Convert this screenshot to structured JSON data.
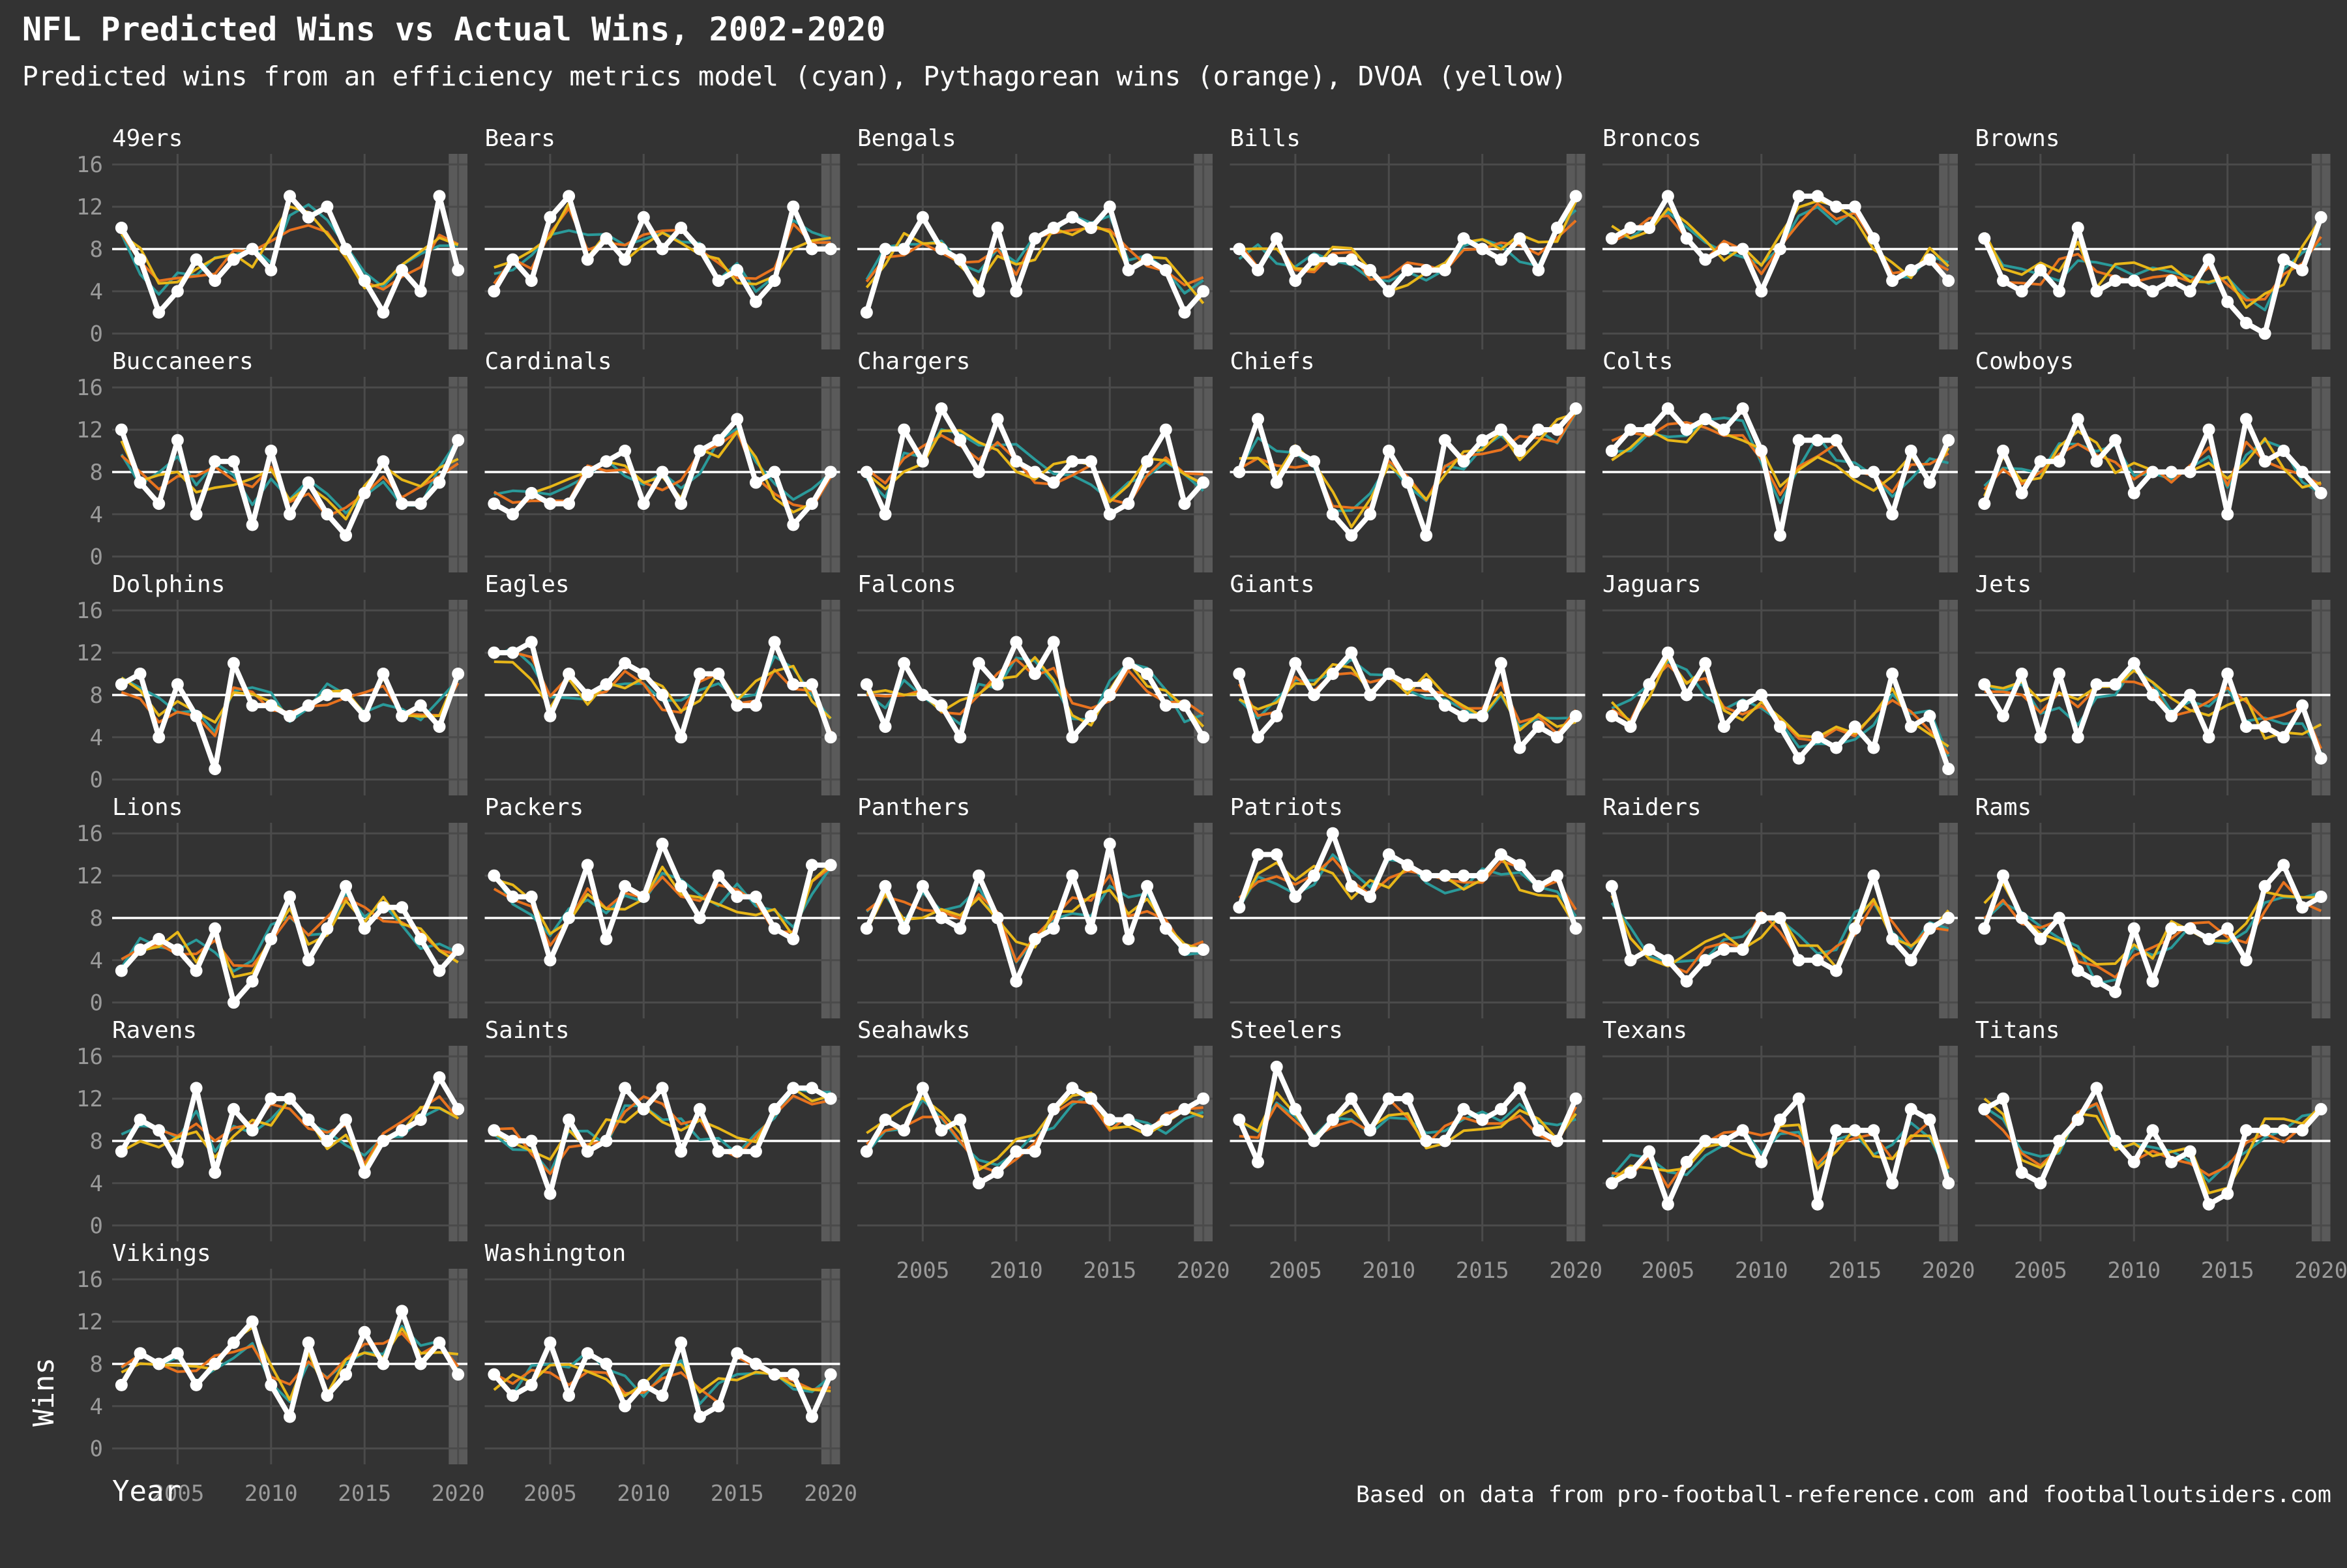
{
  "title": "NFL Predicted Wins vs Actual Wins, 2002-2020",
  "subtitle": "Predicted wins from an efficiency metrics model (cyan), Pythagorean wins (orange), DVOA (yellow)",
  "caption": "Based on data from pro-football-reference.com and footballoutsiders.com",
  "xlabel": "Year",
  "ylabel": "Wins",
  "chart_data": {
    "type": "line",
    "facet_grid": "small multiples, 6 columns, 6 rows",
    "x": [
      2002,
      2003,
      2004,
      2005,
      2006,
      2007,
      2008,
      2009,
      2010,
      2011,
      2012,
      2013,
      2014,
      2015,
      2016,
      2017,
      2018,
      2019,
      2020
    ],
    "x_ticks": [
      2005,
      2010,
      2015,
      2020
    ],
    "y_ticks": [
      0,
      4,
      8,
      12,
      16
    ],
    "ylim": [
      -1.5,
      17
    ],
    "reference_line": 8,
    "highlight_year": 2020,
    "colors": {
      "actual": "#ffffff",
      "efficiency": "#2a9a9a",
      "pythagorean": "#e8731f",
      "dvoa": "#e8b719",
      "reference": "#ffffff",
      "grid": "#4b4b4b",
      "highlight": "#5a5a5a"
    },
    "series_order": [
      "efficiency",
      "pythagorean",
      "dvoa",
      "actual"
    ],
    "teams": [
      {
        "name": "49ers",
        "actual": [
          10,
          7,
          2,
          4,
          7,
          5,
          7,
          8,
          6,
          13,
          11,
          12,
          8,
          5,
          2,
          6,
          4,
          13,
          6
        ]
      },
      {
        "name": "Bears",
        "actual": [
          4,
          7,
          5,
          11,
          13,
          7,
          9,
          7,
          11,
          8,
          10,
          8,
          5,
          6,
          3,
          5,
          12,
          8,
          8
        ]
      },
      {
        "name": "Bengals",
        "actual": [
          2,
          8,
          8,
          11,
          8,
          7,
          4,
          10,
          4,
          9,
          10,
          11,
          10,
          12,
          6,
          7,
          6,
          2,
          4
        ]
      },
      {
        "name": "Bills",
        "actual": [
          8,
          6,
          9,
          5,
          7,
          7,
          7,
          6,
          4,
          6,
          6,
          6,
          9,
          8,
          7,
          9,
          6,
          10,
          13
        ]
      },
      {
        "name": "Broncos",
        "actual": [
          9,
          10,
          10,
          13,
          9,
          7,
          8,
          8,
          4,
          8,
          13,
          13,
          12,
          12,
          9,
          5,
          6,
          7,
          5
        ]
      },
      {
        "name": "Browns",
        "actual": [
          9,
          5,
          4,
          6,
          4,
          10,
          4,
          5,
          5,
          4,
          5,
          4,
          7,
          3,
          1,
          0,
          7,
          6,
          11
        ]
      },
      {
        "name": "Buccaneers",
        "actual": [
          12,
          7,
          5,
          11,
          4,
          9,
          9,
          3,
          10,
          4,
          7,
          4,
          2,
          6,
          9,
          5,
          5,
          7,
          11
        ]
      },
      {
        "name": "Cardinals",
        "actual": [
          5,
          4,
          6,
          5,
          5,
          8,
          9,
          10,
          5,
          8,
          5,
          10,
          11,
          13,
          7,
          8,
          3,
          5,
          8
        ]
      },
      {
        "name": "Chargers",
        "actual": [
          8,
          4,
          12,
          9,
          14,
          11,
          8,
          13,
          9,
          8,
          7,
          9,
          9,
          4,
          5,
          9,
          12,
          5,
          7
        ]
      },
      {
        "name": "Chiefs",
        "actual": [
          8,
          13,
          7,
          10,
          9,
          4,
          2,
          4,
          10,
          7,
          2,
          11,
          9,
          11,
          12,
          10,
          12,
          12,
          14
        ]
      },
      {
        "name": "Colts",
        "actual": [
          10,
          12,
          12,
          14,
          12,
          13,
          12,
          14,
          10,
          2,
          11,
          11,
          11,
          8,
          8,
          4,
          10,
          7,
          11
        ]
      },
      {
        "name": "Cowboys",
        "actual": [
          5,
          10,
          6,
          9,
          9,
          13,
          9,
          11,
          6,
          8,
          8,
          8,
          12,
          4,
          13,
          9,
          10,
          8,
          6
        ]
      },
      {
        "name": "Dolphins",
        "actual": [
          9,
          10,
          4,
          9,
          6,
          1,
          11,
          7,
          7,
          6,
          7,
          8,
          8,
          6,
          10,
          6,
          7,
          5,
          10
        ]
      },
      {
        "name": "Eagles",
        "actual": [
          12,
          12,
          13,
          6,
          10,
          8,
          9,
          11,
          10,
          8,
          4,
          10,
          10,
          7,
          7,
          13,
          9,
          9,
          4
        ]
      },
      {
        "name": "Falcons",
        "actual": [
          9,
          5,
          11,
          8,
          7,
          4,
          11,
          9,
          13,
          10,
          13,
          4,
          6,
          8,
          11,
          10,
          7,
          7,
          4
        ]
      },
      {
        "name": "Giants",
        "actual": [
          10,
          4,
          6,
          11,
          8,
          10,
          12,
          8,
          10,
          9,
          9,
          7,
          6,
          6,
          11,
          3,
          5,
          4,
          6
        ]
      },
      {
        "name": "Jaguars",
        "actual": [
          6,
          5,
          9,
          12,
          8,
          11,
          5,
          7,
          8,
          5,
          2,
          4,
          3,
          5,
          3,
          10,
          5,
          6,
          1
        ]
      },
      {
        "name": "Jets",
        "actual": [
          9,
          6,
          10,
          4,
          10,
          4,
          9,
          9,
          11,
          8,
          6,
          8,
          4,
          10,
          5,
          5,
          4,
          7,
          2
        ]
      },
      {
        "name": "Lions",
        "actual": [
          3,
          5,
          6,
          5,
          3,
          7,
          0,
          2,
          6,
          10,
          4,
          7,
          11,
          7,
          9,
          9,
          6,
          3,
          5
        ]
      },
      {
        "name": "Packers",
        "actual": [
          12,
          10,
          10,
          4,
          8,
          13,
          6,
          11,
          10,
          15,
          11,
          8,
          12,
          10,
          10,
          7,
          6,
          13,
          13
        ]
      },
      {
        "name": "Panthers",
        "actual": [
          7,
          11,
          7,
          11,
          8,
          7,
          12,
          8,
          2,
          6,
          7,
          12,
          7,
          15,
          6,
          11,
          7,
          5,
          5
        ]
      },
      {
        "name": "Patriots",
        "actual": [
          9,
          14,
          14,
          10,
          12,
          16,
          11,
          10,
          14,
          13,
          12,
          12,
          12,
          12,
          14,
          13,
          11,
          12,
          7
        ]
      },
      {
        "name": "Raiders",
        "actual": [
          11,
          4,
          5,
          4,
          2,
          4,
          5,
          5,
          8,
          8,
          4,
          4,
          3,
          7,
          12,
          6,
          4,
          7,
          8
        ]
      },
      {
        "name": "Rams",
        "actual": [
          7,
          12,
          8,
          6,
          8,
          3,
          2,
          1,
          7,
          2,
          7,
          7,
          6,
          7,
          4,
          11,
          13,
          9,
          10
        ]
      },
      {
        "name": "Ravens",
        "actual": [
          7,
          10,
          9,
          6,
          13,
          5,
          11,
          9,
          12,
          12,
          10,
          8,
          10,
          5,
          8,
          9,
          10,
          14,
          11
        ]
      },
      {
        "name": "Saints",
        "actual": [
          9,
          8,
          8,
          3,
          10,
          7,
          8,
          13,
          11,
          13,
          7,
          11,
          7,
          7,
          7,
          11,
          13,
          13,
          12
        ]
      },
      {
        "name": "Seahawks",
        "actual": [
          7,
          10,
          9,
          13,
          9,
          10,
          4,
          5,
          7,
          7,
          11,
          13,
          12,
          10,
          10,
          9,
          10,
          11,
          12
        ]
      },
      {
        "name": "Steelers",
        "actual": [
          10,
          6,
          15,
          11,
          8,
          10,
          12,
          9,
          12,
          12,
          8,
          8,
          11,
          10,
          11,
          13,
          9,
          8,
          12
        ]
      },
      {
        "name": "Texans",
        "actual": [
          4,
          5,
          7,
          2,
          6,
          8,
          8,
          9,
          6,
          10,
          12,
          2,
          9,
          9,
          9,
          4,
          11,
          10,
          4
        ]
      },
      {
        "name": "Titans",
        "actual": [
          11,
          12,
          5,
          4,
          8,
          10,
          13,
          8,
          6,
          9,
          6,
          7,
          2,
          3,
          9,
          9,
          9,
          9,
          11
        ]
      },
      {
        "name": "Vikings",
        "actual": [
          6,
          9,
          8,
          9,
          6,
          8,
          10,
          12,
          6,
          3,
          10,
          5,
          7,
          11,
          8,
          13,
          8,
          10,
          7
        ]
      },
      {
        "name": "Washington",
        "actual": [
          7,
          5,
          6,
          10,
          5,
          9,
          8,
          4,
          6,
          5,
          10,
          3,
          4,
          9,
          8,
          7,
          7,
          3,
          7
        ]
      }
    ]
  }
}
